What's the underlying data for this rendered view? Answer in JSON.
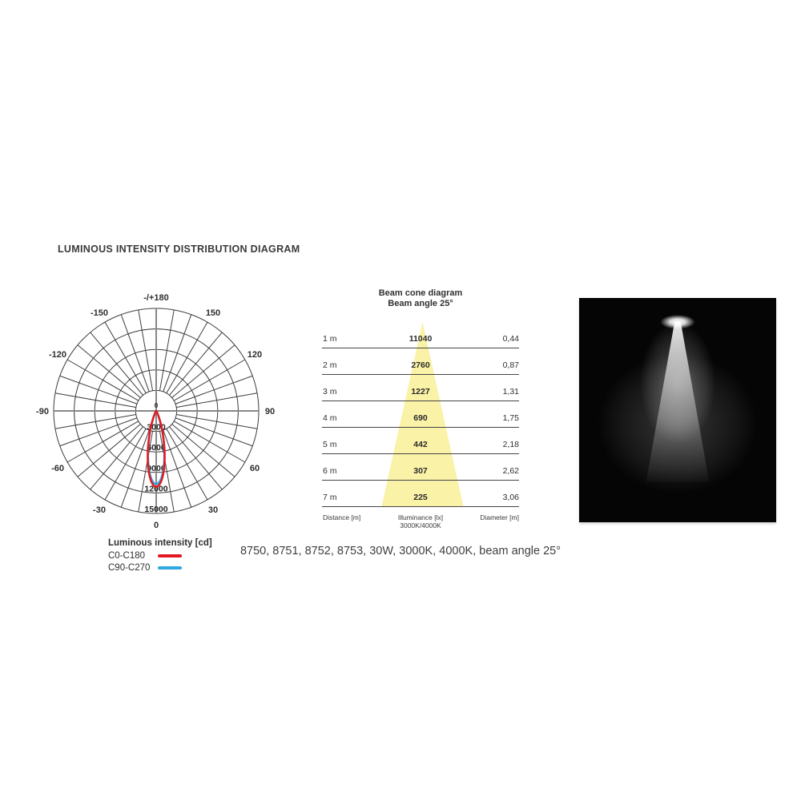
{
  "page": {
    "title": "LUMINOUS INTENSITY DISTRIBUTION DIAGRAM",
    "caption": "8750, 8751, 8752, 8753, 30W, 3000K, 4000K, beam angle 25°"
  },
  "polar": {
    "angle_labels": [
      {
        "deg": 180,
        "label": "-/+180"
      },
      {
        "deg": 150,
        "label": "150"
      },
      {
        "deg": 120,
        "label": "120"
      },
      {
        "deg": 90,
        "label": "90"
      },
      {
        "deg": 60,
        "label": "60"
      },
      {
        "deg": 30,
        "label": "30"
      },
      {
        "deg": 0,
        "label": "0"
      },
      {
        "deg": -30,
        "label": "-30"
      },
      {
        "deg": -60,
        "label": "-60"
      },
      {
        "deg": -90,
        "label": "-90"
      },
      {
        "deg": -120,
        "label": "-120"
      },
      {
        "deg": -150,
        "label": "-150"
      }
    ],
    "ring_labels": [
      "3000",
      "6000",
      "9000",
      "12000",
      "15000"
    ],
    "center_label": "0",
    "max_cd": 15000,
    "grid_color": "#3d3d3d",
    "axis_color": "#878787"
  },
  "legend": {
    "title": "Luminous intensity [cd]",
    "items": [
      {
        "label": "C0-C180",
        "color": "#e2191f"
      },
      {
        "label": "C90-C270",
        "color": "#2fa8e0"
      }
    ]
  },
  "beam_cone": {
    "title": "Beam cone diagram",
    "subtitle": "Beam angle 25°",
    "cone_color": "#faf2a7",
    "rows": [
      {
        "distance": "1 m",
        "illuminance": "11040",
        "diameter": "0,44"
      },
      {
        "distance": "2 m",
        "illuminance": "2760",
        "diameter": "0,87"
      },
      {
        "distance": "3 m",
        "illuminance": "1227",
        "diameter": "1,31"
      },
      {
        "distance": "4 m",
        "illuminance": "690",
        "diameter": "1,75"
      },
      {
        "distance": "5 m",
        "illuminance": "442",
        "diameter": "2,18"
      },
      {
        "distance": "6 m",
        "illuminance": "307",
        "diameter": "2,62"
      },
      {
        "distance": "7 m",
        "illuminance": "225",
        "diameter": "3,06"
      }
    ],
    "footer": {
      "distance": "Distance [m]",
      "illuminance": "Illuminance [lx]",
      "illuminance_sub": "3000K/4000K",
      "diameter": "Diameter [m]"
    }
  },
  "photo": {
    "description": "spotlight beam cone on black background"
  },
  "chart_data": [
    {
      "type": "line",
      "subtype": "polar-luminous-intensity",
      "title": "Luminous intensity [cd]",
      "angle_ticks_deg": [
        -150,
        -120,
        -90,
        -60,
        -30,
        0,
        30,
        60,
        90,
        120,
        150,
        180
      ],
      "radial_ticks_cd": [
        3000,
        6000,
        9000,
        12000,
        15000
      ],
      "radial_range": [
        0,
        15000
      ],
      "grid": true,
      "legend_position": "bottom-left",
      "series": [
        {
          "name": "C0-C180",
          "color": "#e2191f",
          "peak_cd": 11100,
          "peak_direction_deg": 0,
          "beam_angle_deg": 25
        },
        {
          "name": "C90-C270",
          "color": "#2fa8e0",
          "peak_cd": 10700,
          "peak_direction_deg": 0,
          "beam_angle_deg": 25
        }
      ]
    },
    {
      "type": "table",
      "title": "Beam cone diagram",
      "subtitle": "Beam angle 25°",
      "columns": [
        "Distance [m]",
        "Illuminance [lx] 3000K/4000K",
        "Diameter [m]"
      ],
      "rows": [
        [
          "1 m",
          11040,
          "0,44"
        ],
        [
          "2 m",
          2760,
          "0,87"
        ],
        [
          "3 m",
          1227,
          "1,31"
        ],
        [
          "4 m",
          690,
          "1,75"
        ],
        [
          "5 m",
          442,
          "2,18"
        ],
        [
          "6 m",
          307,
          "2,62"
        ],
        [
          "7 m",
          225,
          "3,06"
        ]
      ]
    }
  ]
}
